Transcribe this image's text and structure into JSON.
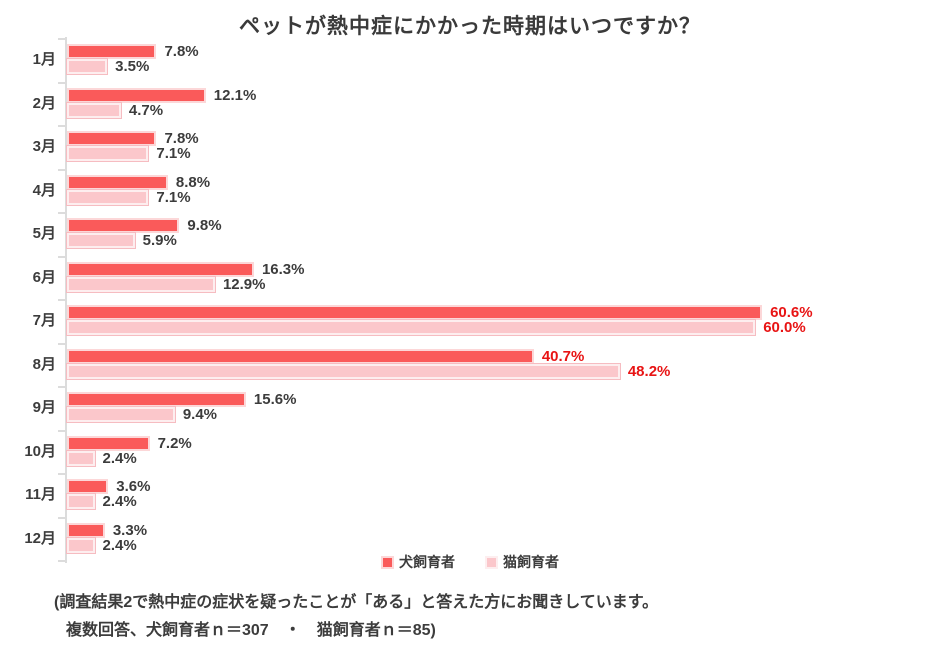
{
  "title": "ペットが熱中症にかかった時期はいつですか？",
  "chart_data": {
    "type": "bar",
    "orientation": "horizontal",
    "title": "ペットが熱中症にかかった時期はいつですか？",
    "categories": [
      "1月",
      "2月",
      "3月",
      "4月",
      "5月",
      "6月",
      "7月",
      "8月",
      "9月",
      "10月",
      "11月",
      "12月"
    ],
    "series": [
      {
        "name": "犬飼育者",
        "color": "#fa5a5a",
        "values": [
          7.8,
          12.1,
          7.8,
          8.8,
          9.8,
          16.3,
          60.6,
          40.7,
          15.6,
          7.2,
          3.6,
          3.3
        ]
      },
      {
        "name": "猫飼育者",
        "color": "#fbc7cb",
        "values": [
          3.5,
          4.7,
          7.1,
          7.1,
          5.9,
          12.9,
          60.0,
          48.2,
          9.4,
          2.4,
          2.4,
          2.4
        ]
      }
    ],
    "value_labels": {
      "dog": [
        "7.8%",
        "12.1%",
        "7.8%",
        "8.8%",
        "9.8%",
        "16.3%",
        "60.6%",
        "40.7%",
        "15.6%",
        "7.2%",
        "3.6%",
        "3.3%"
      ],
      "cat": [
        "3.5%",
        "4.7%",
        "7.1%",
        "7.1%",
        "5.9%",
        "12.9%",
        "60.0%",
        "48.2%",
        "9.4%",
        "2.4%",
        "2.4%",
        "2.4%"
      ]
    },
    "highlighted_categories": [
      "7月",
      "8月"
    ],
    "label_color": "#3c3c3c",
    "highlight_label_color": "#e81414",
    "value_unit": "%",
    "xlim": [
      0,
      62
    ],
    "grid": false,
    "legend_position": "bottom-center"
  },
  "legend": {
    "items": [
      {
        "label": "犬飼育者",
        "color": "#fa5a5a"
      },
      {
        "label": "猫飼育者",
        "color": "#fbc7cb"
      }
    ]
  },
  "footnote": {
    "line1": "(調査結果2で熱中症の症状を疑ったことが「ある」と答えた方にお聞きしています。",
    "line2": "複数回答、犬飼育者ｎ＝307　・　猫飼育者ｎ＝85)"
  }
}
